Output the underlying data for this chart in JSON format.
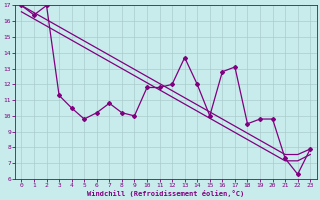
{
  "xlabel": "Windchill (Refroidissement éolien,°C)",
  "background_color": "#c8ecec",
  "grid_color": "#aacccc",
  "line_color": "#800080",
  "x_data": [
    0,
    1,
    2,
    3,
    4,
    5,
    6,
    7,
    8,
    9,
    10,
    11,
    12,
    13,
    14,
    15,
    16,
    17,
    18,
    19,
    20,
    21,
    22,
    23
  ],
  "line1_y": [
    17.0,
    16.4,
    17.0,
    11.3,
    10.5,
    9.8,
    10.2,
    10.8,
    10.2,
    10.0,
    11.8,
    11.8,
    12.0,
    13.7,
    12.0,
    10.0,
    12.8,
    13.1,
    9.5,
    9.8,
    9.8,
    7.3,
    6.3,
    7.9
  ],
  "line2_y": [
    17.0,
    16.55,
    16.1,
    15.65,
    15.2,
    14.75,
    14.3,
    13.85,
    13.4,
    12.95,
    12.5,
    12.05,
    11.6,
    11.15,
    10.7,
    10.25,
    9.8,
    9.35,
    8.9,
    8.45,
    8.0,
    7.55,
    7.55,
    7.9
  ],
  "line3_y": [
    16.6,
    16.15,
    15.7,
    15.25,
    14.8,
    14.35,
    13.9,
    13.45,
    13.0,
    12.55,
    12.1,
    11.65,
    11.2,
    10.75,
    10.3,
    9.85,
    9.4,
    8.95,
    8.5,
    8.05,
    7.6,
    7.15,
    7.15,
    7.55
  ],
  "ylim": [
    6,
    17
  ],
  "xlim": [
    -0.5,
    23.5
  ],
  "yticks": [
    6,
    7,
    8,
    9,
    10,
    11,
    12,
    13,
    14,
    15,
    16,
    17
  ],
  "xticks": [
    0,
    1,
    2,
    3,
    4,
    5,
    6,
    7,
    8,
    9,
    10,
    11,
    12,
    13,
    14,
    15,
    16,
    17,
    18,
    19,
    20,
    21,
    22,
    23
  ]
}
